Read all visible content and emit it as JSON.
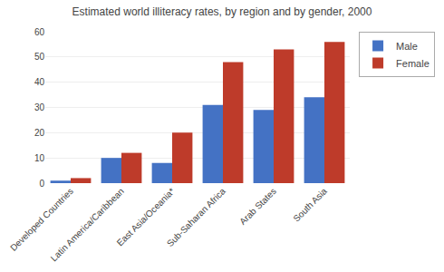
{
  "chart_data": {
    "type": "bar",
    "title": "Estimated world illiteracy rates, by region and by gender, 2000",
    "categories": [
      "Developed Countries",
      "Latin America/Caribbean",
      "East Asia/Oceania*",
      "Sub-Saharan Africa",
      "Arab States",
      "South Asia"
    ],
    "series": [
      {
        "name": "Male",
        "color": "#4472C4",
        "values": [
          1,
          10,
          8,
          31,
          29,
          34
        ]
      },
      {
        "name": "Female",
        "color": "#BE3B2A",
        "values": [
          2,
          12,
          20,
          48,
          53,
          56
        ]
      }
    ],
    "ylim": [
      0,
      60
    ],
    "yticks": [
      0,
      10,
      20,
      30,
      40,
      50,
      60
    ],
    "grid": true,
    "legend": "upper right"
  }
}
